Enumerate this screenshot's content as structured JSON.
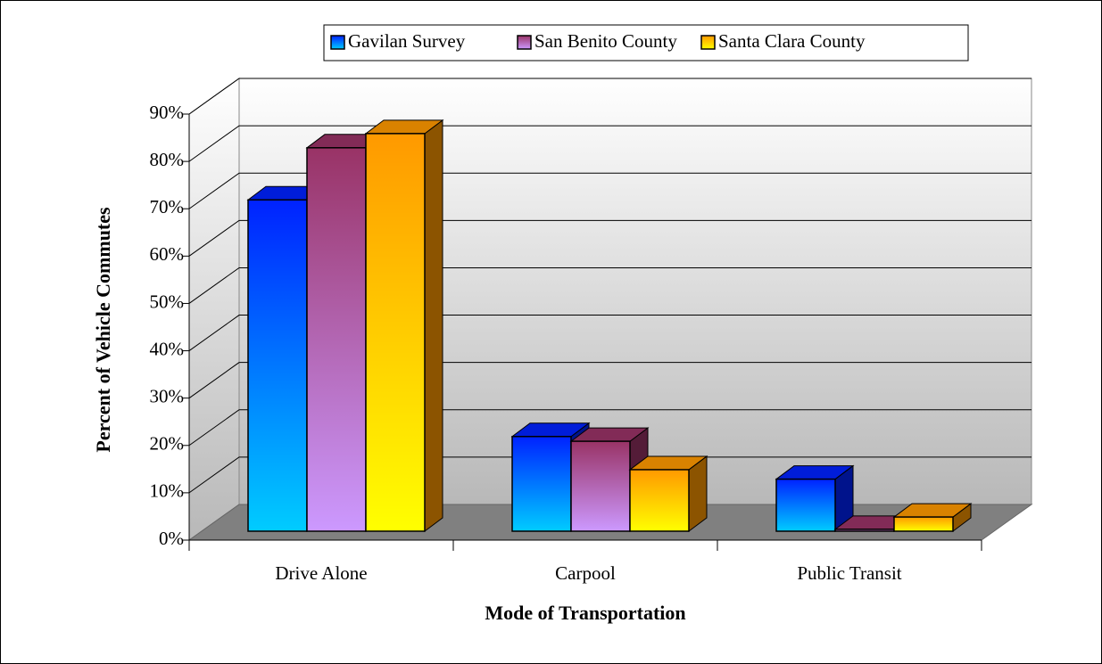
{
  "chart_data": {
    "type": "bar3d",
    "x_label": "Mode of Transportation",
    "y_label": "Percent of Vehicle Commutes",
    "categories": [
      "Drive Alone",
      "Carpool",
      "Public Transit"
    ],
    "series": [
      {
        "name": "Gavilan Survey",
        "color": "#0022ff",
        "values": [
          70,
          20,
          11
        ]
      },
      {
        "name": "San Benito County",
        "color": "#993366",
        "values": [
          81,
          19,
          0.4
        ]
      },
      {
        "name": "Santa Clara County",
        "color": "#ff9900",
        "values": [
          84,
          13,
          3
        ]
      }
    ],
    "ylim": [
      0,
      90
    ],
    "yticks": [
      {
        "value": 0,
        "label": "0%"
      },
      {
        "value": 10,
        "label": "10%"
      },
      {
        "value": 20,
        "label": "20%"
      },
      {
        "value": 30,
        "label": "30%"
      },
      {
        "value": 40,
        "label": "40%"
      },
      {
        "value": 50,
        "label": "50%"
      },
      {
        "value": 60,
        "label": "60%"
      },
      {
        "value": 70,
        "label": "70%"
      },
      {
        "value": 80,
        "label": "80%"
      },
      {
        "value": 90,
        "label": "90%"
      }
    ],
    "grid": true,
    "legend": "top"
  }
}
